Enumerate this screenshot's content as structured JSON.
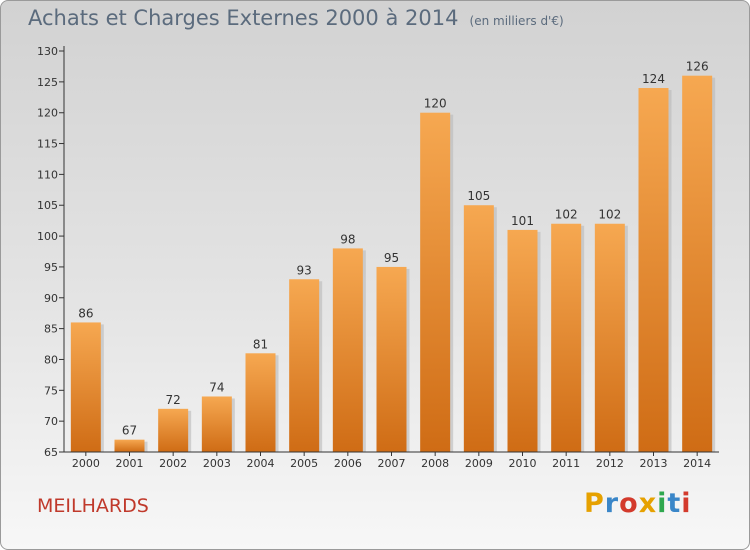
{
  "title": "Achats et Charges Externes 2000 à 2014",
  "subtitle": "(en milliers d'€)",
  "commune": "MEILHARDS",
  "logo": {
    "text": "Proxiti",
    "colors": [
      "#e6a100",
      "#3a86c8",
      "#d33a2c",
      "#e6a100",
      "#2fa84f",
      "#3a86c8",
      "#d33a2c"
    ]
  },
  "colors": {
    "bar_light": "#f6a851",
    "bar_dark": "#cf6c15",
    "axis": "#333333",
    "commune": "#c0392b",
    "title": "#5b6b7d"
  },
  "chart_data": {
    "type": "bar",
    "title": "Achats et Charges Externes 2000 à 2014",
    "subtitle": "(en milliers d'€)",
    "categories": [
      "2000",
      "2001",
      "2002",
      "2003",
      "2004",
      "2005",
      "2006",
      "2007",
      "2008",
      "2009",
      "2010",
      "2011",
      "2012",
      "2013",
      "2014"
    ],
    "values": [
      86,
      67,
      72,
      74,
      81,
      93,
      98,
      95,
      120,
      105,
      101,
      102,
      102,
      124,
      126
    ],
    "ylim": [
      65,
      130
    ],
    "yticks": [
      65,
      70,
      75,
      80,
      85,
      90,
      95,
      100,
      105,
      110,
      115,
      120,
      125,
      130
    ],
    "grid": false,
    "data_labels": true
  }
}
